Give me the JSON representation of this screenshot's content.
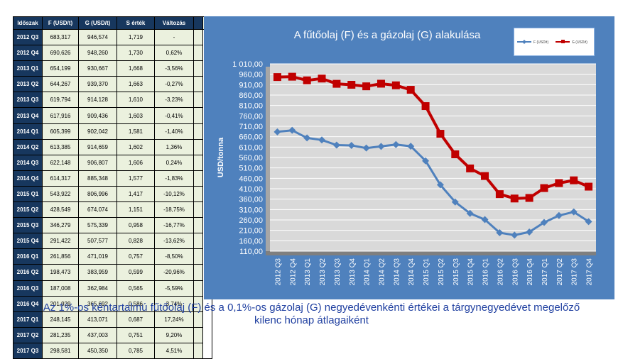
{
  "table": {
    "headers": [
      "Időszak",
      "F (USD/t)",
      "G (USD/t)",
      "S érték",
      "Változás"
    ],
    "side_label": "tényadatok",
    "rows": [
      [
        "2012 Q3",
        "683,317",
        "946,574",
        "1,719",
        "-"
      ],
      [
        "2012 Q4",
        "690,626",
        "948,260",
        "1,730",
        "0,62%"
      ],
      [
        "2013 Q1",
        "654,199",
        "930,667",
        "1,668",
        "-3,56%"
      ],
      [
        "2013 Q2",
        "644,267",
        "939,370",
        "1,663",
        "-0,27%"
      ],
      [
        "2013 Q3",
        "619,794",
        "914,128",
        "1,610",
        "-3,23%"
      ],
      [
        "2013 Q4",
        "617,916",
        "909,436",
        "1,603",
        "-0,41%"
      ],
      [
        "2014 Q1",
        "605,399",
        "902,042",
        "1,581",
        "-1,40%"
      ],
      [
        "2014 Q2",
        "613,385",
        "914,659",
        "1,602",
        "1,36%"
      ],
      [
        "2014 Q3",
        "622,148",
        "906,807",
        "1,606",
        "0,24%"
      ],
      [
        "2014 Q4",
        "614,317",
        "885,348",
        "1,577",
        "-1,83%"
      ],
      [
        "2015 Q1",
        "543,922",
        "806,996",
        "1,417",
        "-10,12%"
      ],
      [
        "2015 Q2",
        "428,549",
        "674,074",
        "1,151",
        "-18,75%"
      ],
      [
        "2015 Q3",
        "346,279",
        "575,339",
        "0,958",
        "-16,77%"
      ],
      [
        "2015 Q4",
        "291,422",
        "507,577",
        "0,828",
        "-13,62%"
      ],
      [
        "2016 Q1",
        "261,856",
        "471,019",
        "0,757",
        "-8,50%"
      ],
      [
        "2016 Q2",
        "198,473",
        "383,959",
        "0,599",
        "-20,96%"
      ],
      [
        "2016 Q3",
        "187,008",
        "362,984",
        "0,565",
        "-5,59%"
      ],
      [
        "2016 Q4",
        "201,929",
        "365,692",
        "0,586",
        "3,74%"
      ],
      [
        "2017 Q1",
        "248,145",
        "413,071",
        "0,687",
        "17,24%"
      ],
      [
        "2017 Q2",
        "281,235",
        "437,003",
        "0,751",
        "9,20%"
      ],
      [
        "2017 Q3",
        "298,581",
        "450,350",
        "0,785",
        "4,51%"
      ]
    ]
  },
  "chart_data": {
    "type": "line",
    "title": "A fűtőolaj (F) és a gázolaj (G) alakulása",
    "ylabel": "USD/tonna",
    "xlabel": "",
    "ylim": [
      110,
      1010
    ],
    "ytick_step": 50,
    "ytick_labels": [
      "110,00",
      "160,00",
      "210,00",
      "260,00",
      "310,00",
      "360,00",
      "410,00",
      "460,00",
      "510,00",
      "560,00",
      "610,00",
      "660,00",
      "710,00",
      "760,00",
      "810,00",
      "860,00",
      "910,00",
      "960,00",
      "1 010,00"
    ],
    "categories": [
      "2012 Q3",
      "2012 Q4",
      "2013 Q1",
      "2013 Q2",
      "2013 Q3",
      "2013 Q4",
      "2014 Q1",
      "2014 Q2",
      "2014 Q3",
      "2014 Q4",
      "2015 Q1",
      "2015 Q2",
      "2015 Q3",
      "2015 Q4",
      "2016 Q1",
      "2016 Q2",
      "2016 Q3",
      "2016 Q4",
      "2017 Q1",
      "2017 Q2",
      "2017 Q3",
      "2017 Q4"
    ],
    "grid": true,
    "legend_position": "top-right",
    "series": [
      {
        "name": "F (USD/t)",
        "color": "#4f81bd",
        "marker": "diamond",
        "values": [
          683.317,
          690.626,
          654.199,
          644.267,
          619.794,
          617.916,
          605.399,
          613.385,
          622.148,
          614.317,
          543.922,
          428.549,
          346.279,
          291.422,
          261.856,
          198.473,
          187.008,
          201.929,
          248.145,
          281.235,
          298.581,
          252
        ]
      },
      {
        "name": "G (USD/t)",
        "color": "#c00000",
        "marker": "square",
        "values": [
          946.574,
          948.26,
          930.667,
          939.37,
          914.128,
          909.436,
          902.042,
          914.659,
          906.807,
          885.348,
          806.996,
          674.074,
          575.339,
          507.577,
          471.019,
          383.959,
          362.984,
          365.692,
          413.071,
          437.003,
          450.35,
          420
        ]
      }
    ]
  },
  "caption_lines": [
    "Az 1%-os kéntartalmú fűtőolaj (F) és a 0,1%-os gázolaj (G) negyedévenkénti értékei a tárgynegyedévet megelőző",
    "kilenc hónap átlagaiként"
  ]
}
